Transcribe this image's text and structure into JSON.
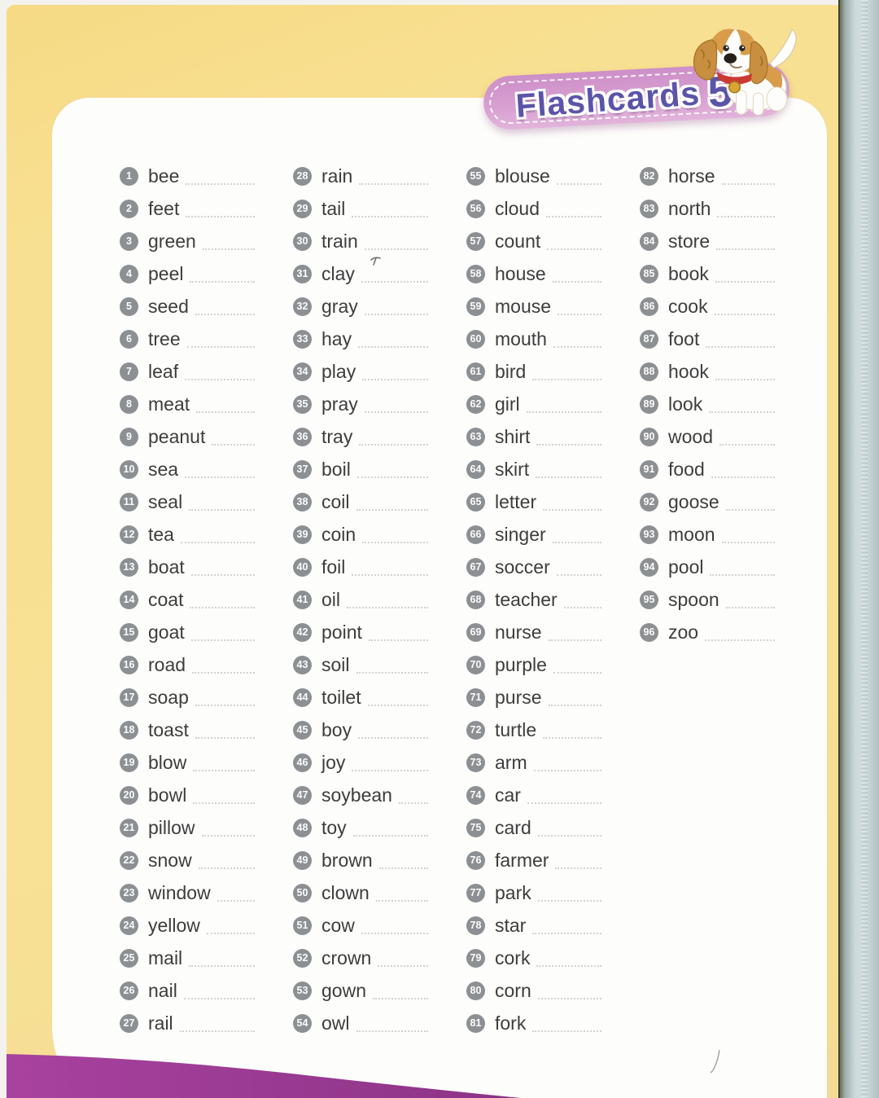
{
  "header": {
    "label": "Flashcards",
    "number": "5"
  },
  "icons": {
    "dog": "puppy-mascot"
  },
  "colors": {
    "page_yellow": "#f8e092",
    "card_white": "#fdfdfb",
    "pill_pink": "#d79fd0",
    "title_purple": "#5b54a9",
    "wave_purple": "#9a3d94",
    "badge_gray": "#8c9093",
    "word_gray": "#3d3d3d",
    "book_edge_blue": "#ccd8d9"
  },
  "words": [
    {
      "num": "1",
      "word": "bee"
    },
    {
      "num": "2",
      "word": "feet"
    },
    {
      "num": "3",
      "word": "green"
    },
    {
      "num": "4",
      "word": "peel"
    },
    {
      "num": "5",
      "word": "seed"
    },
    {
      "num": "6",
      "word": "tree"
    },
    {
      "num": "7",
      "word": "leaf"
    },
    {
      "num": "8",
      "word": "meat"
    },
    {
      "num": "9",
      "word": "peanut"
    },
    {
      "num": "10",
      "word": "sea"
    },
    {
      "num": "11",
      "word": "seal"
    },
    {
      "num": "12",
      "word": "tea"
    },
    {
      "num": "13",
      "word": "boat"
    },
    {
      "num": "14",
      "word": "coat"
    },
    {
      "num": "15",
      "word": "goat"
    },
    {
      "num": "16",
      "word": "road"
    },
    {
      "num": "17",
      "word": "soap"
    },
    {
      "num": "18",
      "word": "toast"
    },
    {
      "num": "19",
      "word": "blow"
    },
    {
      "num": "20",
      "word": "bowl"
    },
    {
      "num": "21",
      "word": "pillow"
    },
    {
      "num": "22",
      "word": "snow"
    },
    {
      "num": "23",
      "word": "window"
    },
    {
      "num": "24",
      "word": "yellow"
    },
    {
      "num": "25",
      "word": "mail"
    },
    {
      "num": "26",
      "word": "nail"
    },
    {
      "num": "27",
      "word": "rail"
    },
    {
      "num": "28",
      "word": "rain"
    },
    {
      "num": "29",
      "word": "tail"
    },
    {
      "num": "30",
      "word": "train"
    },
    {
      "num": "31",
      "word": "clay"
    },
    {
      "num": "32",
      "word": "gray"
    },
    {
      "num": "33",
      "word": "hay"
    },
    {
      "num": "34",
      "word": "play"
    },
    {
      "num": "35",
      "word": "pray"
    },
    {
      "num": "36",
      "word": "tray"
    },
    {
      "num": "37",
      "word": "boil"
    },
    {
      "num": "38",
      "word": "coil"
    },
    {
      "num": "39",
      "word": "coin"
    },
    {
      "num": "40",
      "word": "foil"
    },
    {
      "num": "41",
      "word": "oil"
    },
    {
      "num": "42",
      "word": "point"
    },
    {
      "num": "43",
      "word": "soil"
    },
    {
      "num": "44",
      "word": "toilet"
    },
    {
      "num": "45",
      "word": "boy"
    },
    {
      "num": "46",
      "word": "joy"
    },
    {
      "num": "47",
      "word": "soybean"
    },
    {
      "num": "48",
      "word": "toy"
    },
    {
      "num": "49",
      "word": "brown"
    },
    {
      "num": "50",
      "word": "clown"
    },
    {
      "num": "51",
      "word": "cow"
    },
    {
      "num": "52",
      "word": "crown"
    },
    {
      "num": "53",
      "word": "gown"
    },
    {
      "num": "54",
      "word": "owl"
    },
    {
      "num": "55",
      "word": "blouse"
    },
    {
      "num": "56",
      "word": "cloud"
    },
    {
      "num": "57",
      "word": "count"
    },
    {
      "num": "58",
      "word": "house"
    },
    {
      "num": "59",
      "word": "mouse"
    },
    {
      "num": "60",
      "word": "mouth"
    },
    {
      "num": "61",
      "word": "bird"
    },
    {
      "num": "62",
      "word": "girl"
    },
    {
      "num": "63",
      "word": "shirt"
    },
    {
      "num": "64",
      "word": "skirt"
    },
    {
      "num": "65",
      "word": "letter"
    },
    {
      "num": "66",
      "word": "singer"
    },
    {
      "num": "67",
      "word": "soccer"
    },
    {
      "num": "68",
      "word": "teacher"
    },
    {
      "num": "69",
      "word": "nurse"
    },
    {
      "num": "70",
      "word": "purple"
    },
    {
      "num": "71",
      "word": "purse"
    },
    {
      "num": "72",
      "word": "turtle"
    },
    {
      "num": "73",
      "word": "arm"
    },
    {
      "num": "74",
      "word": "car"
    },
    {
      "num": "75",
      "word": "card"
    },
    {
      "num": "76",
      "word": "farmer"
    },
    {
      "num": "77",
      "word": "park"
    },
    {
      "num": "78",
      "word": "star"
    },
    {
      "num": "79",
      "word": "cork"
    },
    {
      "num": "80",
      "word": "corn"
    },
    {
      "num": "81",
      "word": "fork"
    },
    {
      "num": "82",
      "word": "horse"
    },
    {
      "num": "83",
      "word": "north"
    },
    {
      "num": "84",
      "word": "store"
    },
    {
      "num": "85",
      "word": "book"
    },
    {
      "num": "86",
      "word": "cook"
    },
    {
      "num": "87",
      "word": "foot"
    },
    {
      "num": "88",
      "word": "hook"
    },
    {
      "num": "89",
      "word": "look"
    },
    {
      "num": "90",
      "word": "wood"
    },
    {
      "num": "91",
      "word": "food"
    },
    {
      "num": "92",
      "word": "goose"
    },
    {
      "num": "93",
      "word": "moon"
    },
    {
      "num": "94",
      "word": "pool"
    },
    {
      "num": "95",
      "word": "spoon"
    },
    {
      "num": "96",
      "word": "zoo"
    }
  ]
}
